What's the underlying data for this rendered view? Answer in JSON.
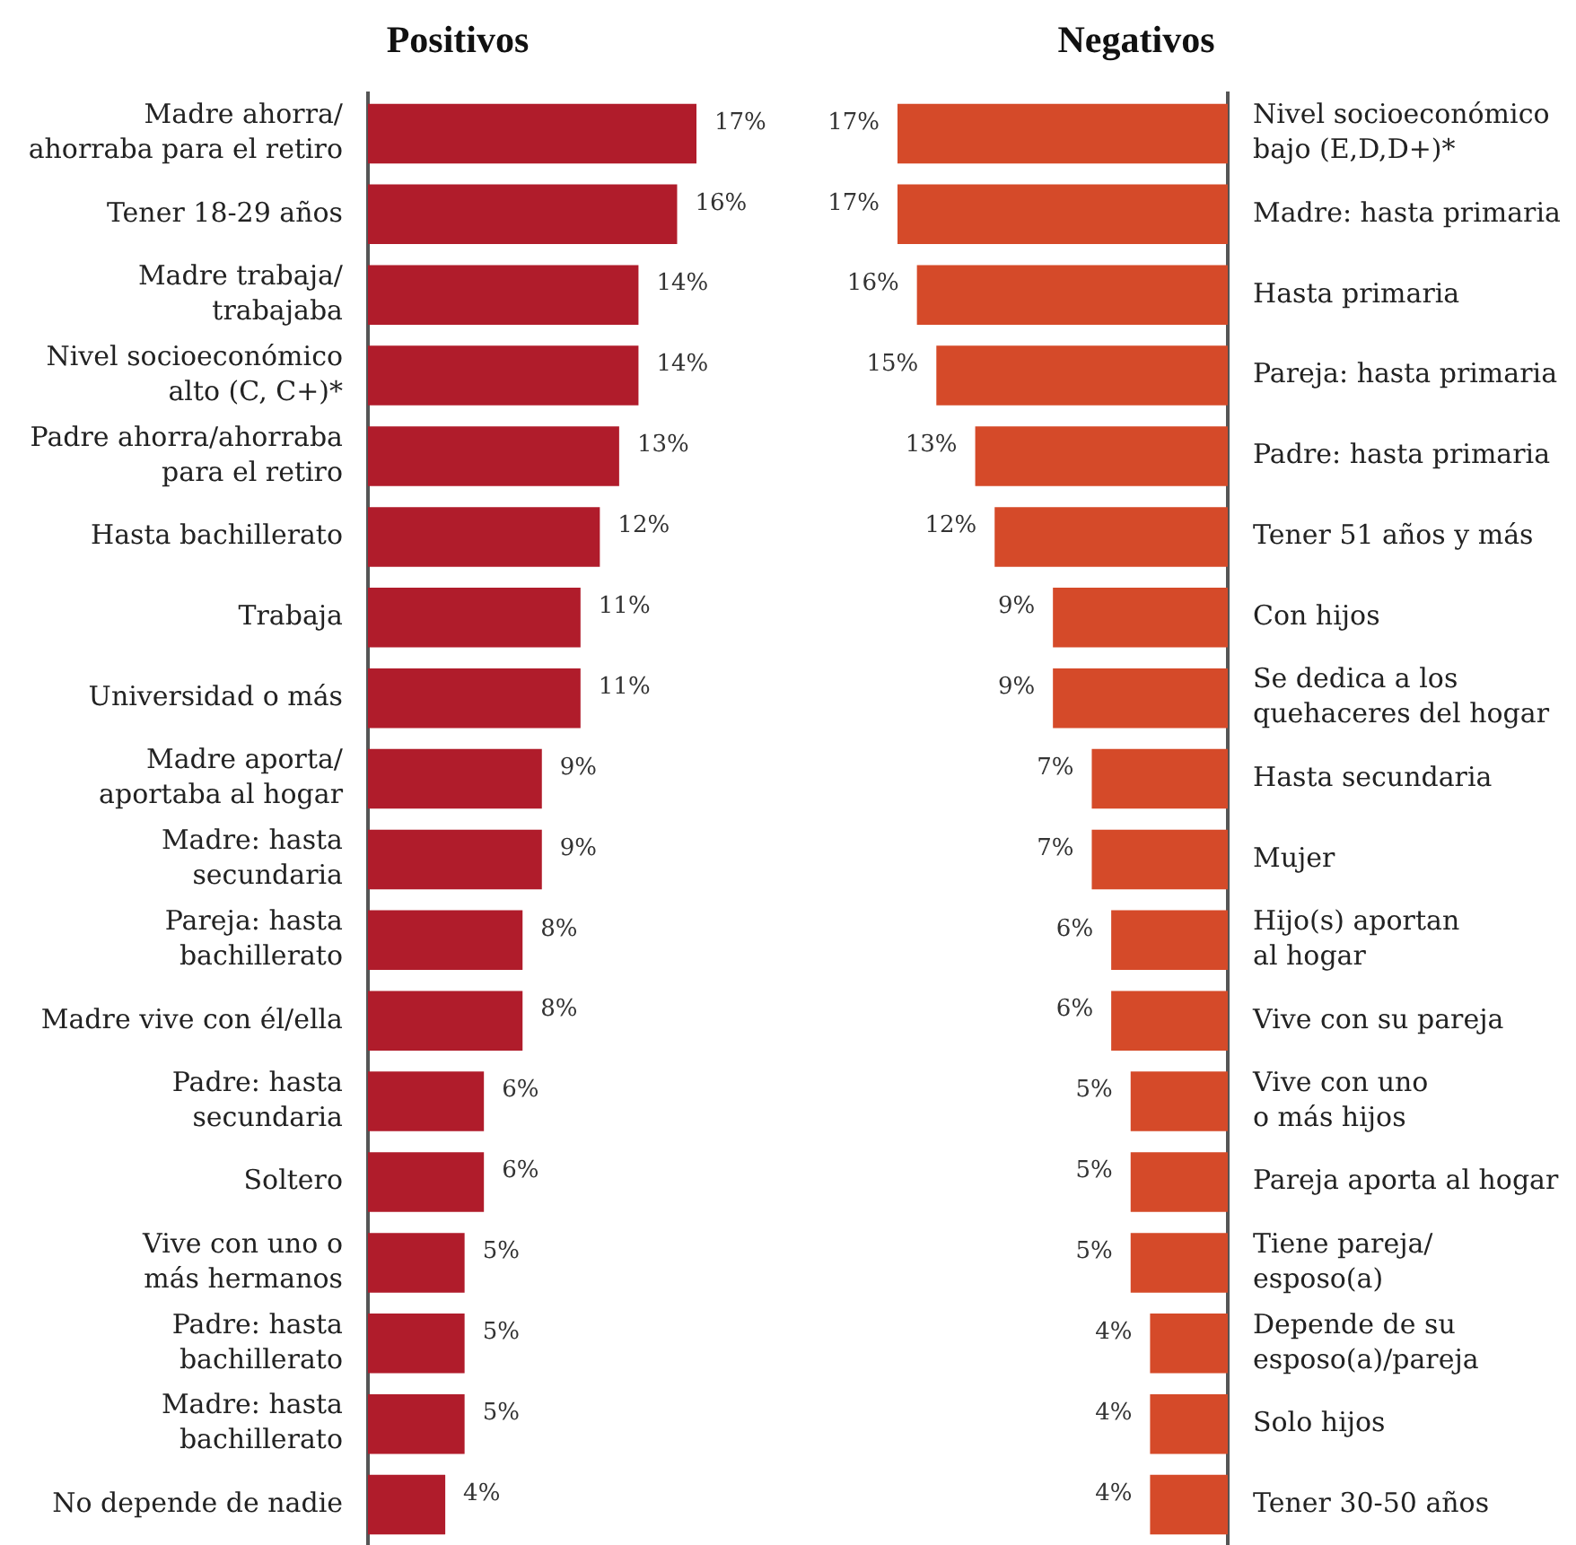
{
  "chart_data": [
    {
      "type": "bar",
      "title": "Positivos",
      "orientation": "horizontal",
      "color": "#b01c2b",
      "tick_labels": "y",
      "xlim": [
        0,
        17
      ],
      "categories": [
        "Madre ahorra/\nahorraba para el retiro",
        "Tener 18-29 años",
        "Madre trabaja/\ntrabajaba",
        "Nivel socioeconómico\nalto (C, C+)*",
        "Padre ahorra/ahorraba\npara el retiro",
        "Hasta bachillerato",
        "Trabaja",
        "Universidad o más",
        "Madre aporta/\naportaba al hogar",
        "Madre: hasta\nsecundaria",
        "Pareja: hasta\nbachillerato",
        "Madre vive con él/ella",
        "Padre: hasta\nsecundaria",
        "Soltero",
        "Vive con uno o\nmás hermanos",
        "Padre: hasta\nbachillerato",
        "Madre: hasta\nbachillerato",
        "No depende de nadie"
      ],
      "values": [
        17,
        16,
        14,
        14,
        13,
        12,
        11,
        11,
        9,
        9,
        8,
        8,
        6,
        6,
        5,
        5,
        5,
        4
      ],
      "value_labels": [
        "17%",
        "16%",
        "14%",
        "14%",
        "13%",
        "12%",
        "11%",
        "11%",
        "9%",
        "9%",
        "8%",
        "8%",
        "6%",
        "6%",
        "5%",
        "5%",
        "5%",
        "4%"
      ]
    },
    {
      "type": "bar",
      "title": "Negativos",
      "orientation": "horizontal",
      "color": "#d54a29",
      "tick_labels": "y",
      "xlim": [
        17,
        0
      ],
      "categories": [
        "Nivel socioeconómico\nbajo (E,D,D+)*",
        "Madre: hasta primaria",
        "Hasta primaria",
        "Pareja: hasta primaria",
        "Padre: hasta primaria",
        "Tener 51 años y más",
        "Con hijos",
        "Se dedica a los\nquehaceres del hogar",
        "Hasta secundaria",
        "Mujer",
        "Hijo(s) aportan\nal hogar",
        "Vive con su pareja",
        "Vive con uno\no más hijos",
        "Pareja aporta al hogar",
        "Tiene pareja/\nesposo(a)",
        "Depende de su\nesposo(a)/pareja",
        "Solo hijos",
        "Tener 30-50 años"
      ],
      "values": [
        17,
        17,
        16,
        15,
        13,
        12,
        9,
        9,
        7,
        7,
        6,
        6,
        5,
        5,
        5,
        4,
        4,
        4
      ],
      "value_labels": [
        "17%",
        "17%",
        "16%",
        "15%",
        "13%",
        "12%",
        "9%",
        "9%",
        "7%",
        "7%",
        "6%",
        "6%",
        "5%",
        "5%",
        "5%",
        "4%",
        "4%",
        "4%"
      ]
    }
  ]
}
